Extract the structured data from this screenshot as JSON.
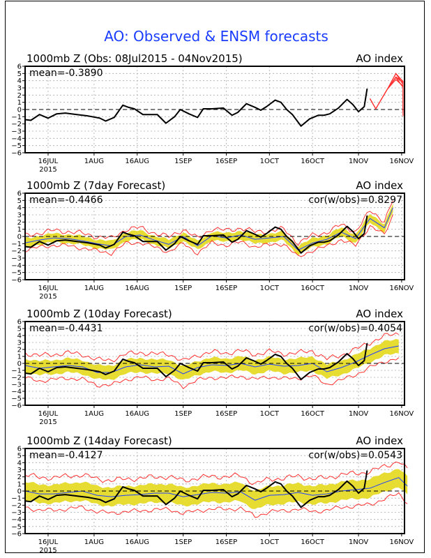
{
  "chart_data": {
    "title": "AO: Observed & ENSM forecasts",
    "type": "line",
    "x_unit": "days since 08Jul2015",
    "x_range": [
      0,
      131
    ],
    "ylim": [
      -6,
      6
    ],
    "yticks": [
      "6",
      "5",
      "4",
      "3",
      "2",
      "1",
      "0",
      "-1",
      "-2",
      "-3",
      "-4",
      "-5",
      "-6"
    ],
    "xticks": [
      {
        "day": 8,
        "label": "16JUL",
        "sub": "2015"
      },
      {
        "day": 24,
        "label": "1AUG",
        "sub": ""
      },
      {
        "day": 39,
        "label": "16AUG",
        "sub": ""
      },
      {
        "day": 55,
        "label": "1SEP",
        "sub": ""
      },
      {
        "day": 70,
        "label": "16SEP",
        "sub": ""
      },
      {
        "day": 85,
        "label": "1OCT",
        "sub": ""
      },
      {
        "day": 100,
        "label": "16OCT",
        "sub": ""
      },
      {
        "day": 116,
        "label": "1NOV",
        "sub": ""
      },
      {
        "day": 131,
        "label": "16NOV",
        "sub": ""
      }
    ],
    "grid": true,
    "observed": {
      "x": [
        0,
        2,
        5,
        8,
        11,
        14,
        18,
        22,
        26,
        28,
        31,
        34,
        36,
        38,
        41,
        44,
        46,
        49,
        52,
        54,
        57,
        60,
        62,
        65,
        69,
        72,
        74,
        77,
        80,
        82,
        84,
        87,
        89,
        91,
        93,
        96,
        99,
        102,
        104,
        106,
        109,
        112,
        114,
        116,
        118,
        119
      ],
      "y": [
        -1.4,
        -1.5,
        -0.7,
        -1.2,
        -0.6,
        -0.5,
        -0.7,
        -0.9,
        -1.2,
        -1.6,
        -1.1,
        0.6,
        0.3,
        0.1,
        -0.7,
        -0.7,
        -0.7,
        -1.9,
        -1.0,
        0.0,
        -0.6,
        -1.1,
        0.1,
        0.1,
        0.2,
        -0.8,
        -0.4,
        0.8,
        0.3,
        -0.1,
        0.4,
        1.3,
        1.0,
        0.0,
        -0.7,
        -2.3,
        -1.3,
        -0.8,
        -0.8,
        -0.6,
        0.2,
        1.4,
        0.7,
        -0.3,
        0.4,
        2.9
      ]
    },
    "panels": [
      {
        "name": "obs",
        "title": "1000mb Z (Obs: 08Jul2015 - 04Nov2015)",
        "right_label": "AO index",
        "mean_label": "mean=-0.3890",
        "cor_label": "",
        "observed_end_day": 120,
        "ensemble_members": 10,
        "ensemble_start": [
          120,
          1.5
        ],
        "ensemble_path": [
          [
            122,
            0.1
          ],
          [
            126,
            2.8
          ],
          [
            129,
            4.6
          ],
          [
            132,
            3.5
          ],
          [
            135,
            2.2
          ],
          [
            138,
            -0.5
          ]
        ]
      },
      {
        "name": "7day",
        "title": "1000mb Z (7day Forecast)",
        "right_label": "AO index",
        "mean_label": "mean=-0.4466",
        "cor_label": "cor(w/obs)=0.8297",
        "mean_fcst": {
          "x": [
            0,
            5,
            10,
            15,
            20,
            25,
            30,
            35,
            40,
            45,
            50,
            55,
            60,
            65,
            70,
            75,
            80,
            85,
            90,
            95,
            100,
            105,
            110,
            115,
            120,
            125,
            128
          ],
          "y": [
            -0.9,
            -0.5,
            -0.2,
            -0.3,
            -0.6,
            -1.0,
            -1.3,
            0.0,
            0.2,
            -0.5,
            -1.1,
            0.0,
            -1.3,
            0.1,
            -0.2,
            0.2,
            -0.4,
            -0.2,
            0.0,
            -1.9,
            -0.9,
            -0.4,
            0.6,
            -0.3,
            2.5,
            1.2,
            4.0
          ]
        },
        "spread_half": 0.6,
        "envelope_half": 1.0
      },
      {
        "name": "10day",
        "title": "1000mb Z (10day Forecast)",
        "right_label": "AO index",
        "mean_label": "mean=-0.4431",
        "cor_label": "cor(w/obs)=0.4054",
        "mean_fcst": {
          "x": [
            0,
            5,
            10,
            15,
            20,
            25,
            30,
            35,
            40,
            45,
            50,
            55,
            60,
            65,
            70,
            75,
            80,
            85,
            90,
            95,
            100,
            105,
            110,
            115,
            120,
            125,
            130
          ],
          "y": [
            -0.3,
            -0.7,
            -0.5,
            -0.3,
            -0.5,
            -1.3,
            -1.3,
            -0.5,
            -0.2,
            -0.5,
            -0.4,
            -1.5,
            -0.6,
            -0.2,
            -0.3,
            0.0,
            -0.5,
            -0.1,
            -0.4,
            -0.3,
            0.0,
            -1.2,
            -0.6,
            0.2,
            1.2,
            2.1,
            2.5
          ]
        },
        "spread_half": 1.0,
        "envelope_half": 1.8
      },
      {
        "name": "14day",
        "title": "1000mb Z (14day Forecast)",
        "right_label": "AO index",
        "mean_label": "mean=-0.4127",
        "cor_label": "cor(w/obs)=0.0543",
        "mean_fcst": {
          "x": [
            0,
            5,
            10,
            15,
            20,
            25,
            30,
            35,
            40,
            45,
            50,
            55,
            60,
            65,
            70,
            75,
            80,
            85,
            90,
            95,
            100,
            105,
            110,
            115,
            120,
            125,
            130,
            133
          ],
          "y": [
            0.0,
            -0.4,
            -0.4,
            -0.2,
            0.0,
            -0.6,
            -0.8,
            -0.6,
            -0.5,
            -0.3,
            -0.3,
            -0.8,
            -0.5,
            -0.2,
            -0.3,
            -0.1,
            -1.3,
            -0.6,
            -0.5,
            -0.2,
            -0.6,
            -0.4,
            0.0,
            0.2,
            0.4,
            1.2,
            1.9,
            0.7
          ]
        },
        "spread_half": 1.3,
        "envelope_half": 2.3
      }
    ],
    "colors": {
      "observed": "#000000",
      "ensemble": "#ff3030",
      "mean_fcst": "#2040ff",
      "spread": "#e6dc32",
      "envelope": "#ff3030",
      "title": "#1a3cff"
    }
  }
}
